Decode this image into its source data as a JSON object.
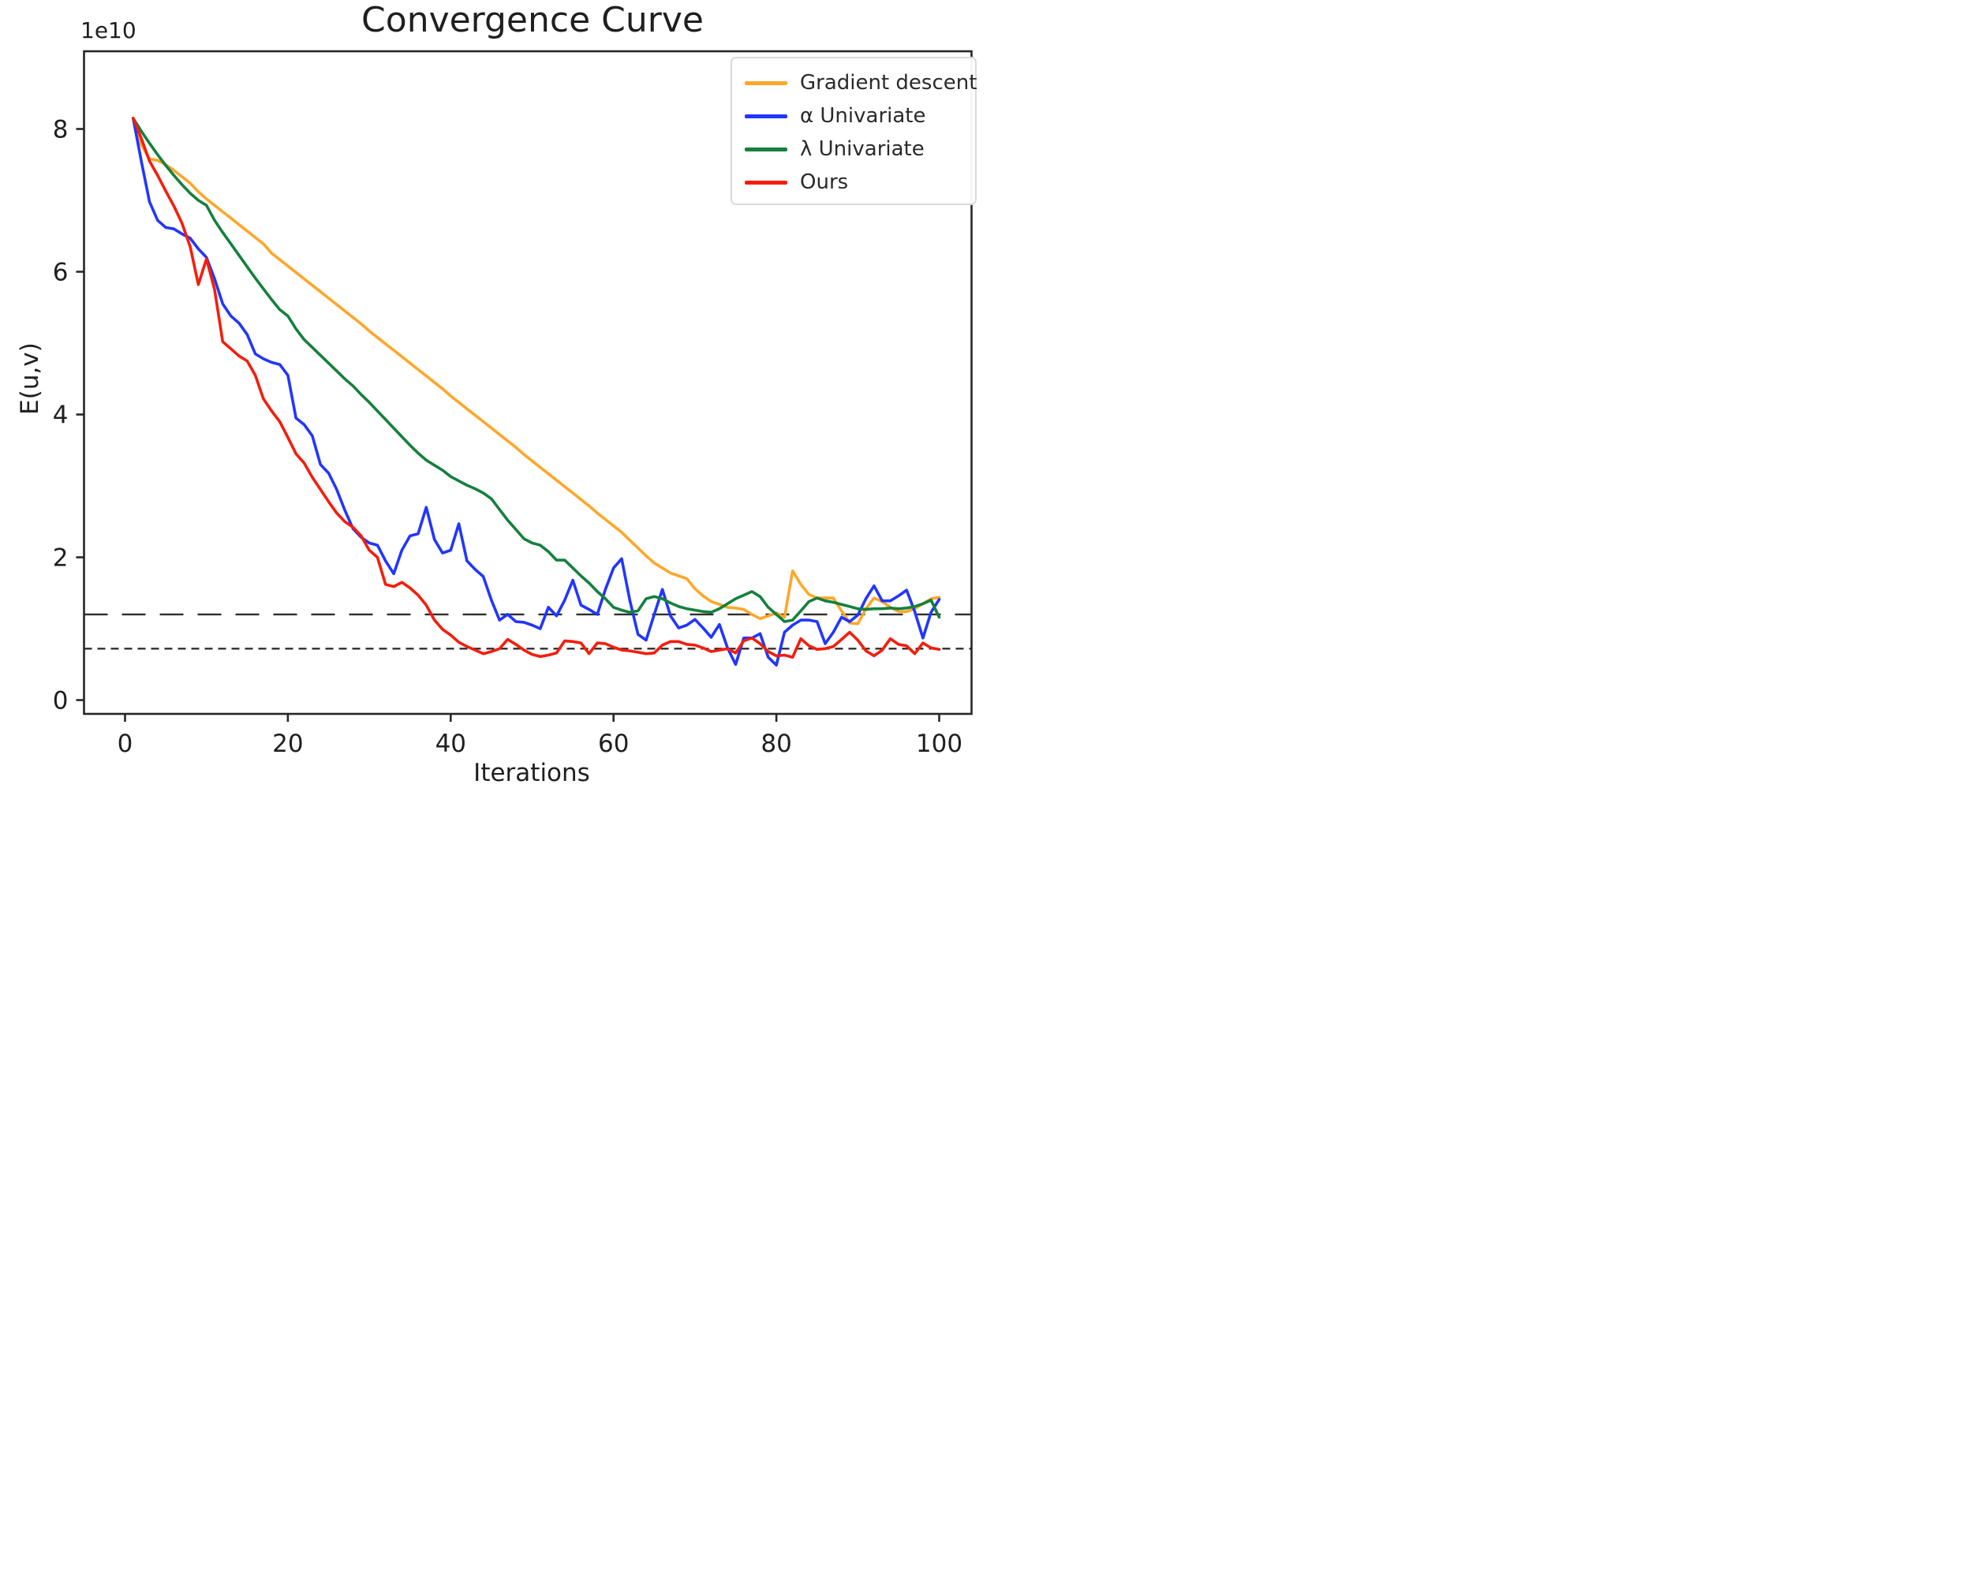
{
  "title": "Convergence Curve",
  "axes": {
    "x_label": "Iterations",
    "y_label": "E(u,v)",
    "y_offset_label": "1e10",
    "x_ticks": [
      0,
      20,
      40,
      60,
      80,
      100
    ],
    "y_ticks": [
      0,
      2,
      4,
      6,
      8
    ]
  },
  "colors": {
    "gradient_descent": "#ffa629",
    "alpha_univariate": "#2136ff",
    "lambda_univariate": "#15803c",
    "ours": "#f51d0c",
    "reference_line": "#2e2e2e",
    "spine": "#262626",
    "text": "#1f1f1f"
  },
  "legend": {
    "items": [
      {
        "label": "Gradient descent",
        "color_key": "gradient_descent"
      },
      {
        "label": "α Univariate",
        "color_key": "alpha_univariate"
      },
      {
        "label": "λ Univariate",
        "color_key": "lambda_univariate"
      },
      {
        "label": "Ours",
        "color_key": "ours"
      }
    ]
  },
  "chart_data": {
    "type": "line",
    "title": "Convergence Curve",
    "xlabel": "Iterations",
    "ylabel": "E(u,v)",
    "y_unit_scale": "1e10",
    "xlim": [
      -5,
      104
    ],
    "ylim_1e10": [
      -0.2,
      9.1
    ],
    "x": {
      "start": 1,
      "step": 1,
      "count": 100
    },
    "grid": false,
    "legend_position": "upper right",
    "reference_lines": [
      {
        "value_1e10": 1.2,
        "style": "long-dash"
      },
      {
        "value_1e10": 0.72,
        "style": "short-dash"
      }
    ],
    "series": [
      {
        "name": "Gradient descent",
        "color_key": "gradient_descent",
        "values_1e10": [
          8.15,
          7.78,
          7.58,
          7.56,
          7.5,
          7.42,
          7.33,
          7.24,
          7.12,
          7.02,
          6.93,
          6.84,
          6.75,
          6.66,
          6.57,
          6.48,
          6.39,
          6.26,
          6.17,
          6.08,
          5.99,
          5.9,
          5.81,
          5.72,
          5.63,
          5.54,
          5.45,
          5.36,
          5.27,
          5.17,
          5.08,
          4.99,
          4.9,
          4.81,
          4.72,
          4.63,
          4.54,
          4.45,
          4.36,
          4.26,
          4.17,
          4.08,
          3.99,
          3.9,
          3.81,
          3.72,
          3.63,
          3.54,
          3.44,
          3.35,
          3.26,
          3.17,
          3.08,
          2.99,
          2.9,
          2.81,
          2.72,
          2.62,
          2.53,
          2.44,
          2.35,
          2.24,
          2.13,
          2.02,
          1.92,
          1.85,
          1.78,
          1.74,
          1.7,
          1.56,
          1.46,
          1.38,
          1.34,
          1.3,
          1.29,
          1.27,
          1.2,
          1.14,
          1.18,
          1.22,
          1.16,
          1.81,
          1.62,
          1.48,
          1.43,
          1.43,
          1.43,
          1.25,
          1.08,
          1.07,
          1.28,
          1.43,
          1.38,
          1.3,
          1.24,
          1.24,
          1.28,
          1.35,
          1.42,
          1.44
        ]
      },
      {
        "name": "α Univariate",
        "color_key": "alpha_univariate",
        "values_1e10": [
          8.15,
          7.55,
          6.98,
          6.72,
          6.62,
          6.6,
          6.53,
          6.47,
          6.32,
          6.2,
          5.9,
          5.55,
          5.38,
          5.28,
          5.12,
          4.85,
          4.78,
          4.73,
          4.7,
          4.55,
          3.95,
          3.86,
          3.7,
          3.3,
          3.18,
          2.95,
          2.66,
          2.4,
          2.28,
          2.2,
          2.17,
          1.95,
          1.77,
          2.1,
          2.3,
          2.33,
          2.7,
          2.25,
          2.06,
          2.1,
          2.47,
          1.95,
          1.83,
          1.73,
          1.4,
          1.12,
          1.2,
          1.1,
          1.09,
          1.05,
          1.0,
          1.3,
          1.18,
          1.4,
          1.68,
          1.33,
          1.27,
          1.2,
          1.55,
          1.85,
          1.98,
          1.4,
          0.92,
          0.84,
          1.2,
          1.55,
          1.18,
          1.01,
          1.05,
          1.13,
          1.01,
          0.88,
          1.06,
          0.73,
          0.5,
          0.87,
          0.87,
          0.93,
          0.6,
          0.49,
          0.95,
          1.05,
          1.12,
          1.12,
          1.1,
          0.79,
          0.95,
          1.16,
          1.1,
          1.19,
          1.42,
          1.6,
          1.39,
          1.39,
          1.46,
          1.54,
          1.24,
          0.87,
          1.23,
          1.41
        ]
      },
      {
        "name": "λ Univariate",
        "color_key": "lambda_univariate",
        "values_1e10": [
          8.15,
          7.97,
          7.8,
          7.64,
          7.49,
          7.35,
          7.22,
          7.1,
          7.0,
          6.93,
          6.72,
          6.55,
          6.39,
          6.23,
          6.07,
          5.91,
          5.76,
          5.61,
          5.47,
          5.38,
          5.2,
          5.05,
          4.94,
          4.83,
          4.72,
          4.61,
          4.5,
          4.4,
          4.28,
          4.17,
          4.05,
          3.93,
          3.81,
          3.69,
          3.57,
          3.46,
          3.36,
          3.29,
          3.22,
          3.13,
          3.07,
          3.01,
          2.96,
          2.9,
          2.82,
          2.67,
          2.52,
          2.39,
          2.26,
          2.2,
          2.17,
          2.08,
          1.96,
          1.96,
          1.85,
          1.74,
          1.64,
          1.52,
          1.42,
          1.3,
          1.26,
          1.23,
          1.25,
          1.42,
          1.45,
          1.42,
          1.36,
          1.31,
          1.28,
          1.26,
          1.24,
          1.23,
          1.28,
          1.35,
          1.42,
          1.47,
          1.52,
          1.45,
          1.3,
          1.2,
          1.1,
          1.12,
          1.25,
          1.38,
          1.43,
          1.39,
          1.37,
          1.34,
          1.31,
          1.28,
          1.27,
          1.28,
          1.28,
          1.29,
          1.28,
          1.29,
          1.31,
          1.35,
          1.4,
          1.16
        ]
      },
      {
        "name": "Ours",
        "color_key": "ours",
        "values_1e10": [
          8.15,
          7.87,
          7.55,
          7.35,
          7.13,
          6.92,
          6.68,
          6.35,
          5.82,
          6.18,
          5.75,
          5.02,
          4.92,
          4.82,
          4.75,
          4.55,
          4.22,
          4.05,
          3.9,
          3.68,
          3.45,
          3.32,
          3.12,
          2.95,
          2.78,
          2.62,
          2.5,
          2.42,
          2.3,
          2.1,
          2.0,
          1.62,
          1.59,
          1.65,
          1.57,
          1.47,
          1.33,
          1.12,
          0.99,
          0.91,
          0.81,
          0.75,
          0.7,
          0.65,
          0.68,
          0.72,
          0.85,
          0.78,
          0.7,
          0.64,
          0.61,
          0.63,
          0.66,
          0.83,
          0.82,
          0.8,
          0.65,
          0.8,
          0.79,
          0.74,
          0.7,
          0.69,
          0.67,
          0.65,
          0.66,
          0.77,
          0.82,
          0.82,
          0.78,
          0.77,
          0.73,
          0.68,
          0.7,
          0.72,
          0.66,
          0.83,
          0.87,
          0.79,
          0.68,
          0.62,
          0.63,
          0.6,
          0.86,
          0.76,
          0.71,
          0.72,
          0.75,
          0.85,
          0.95,
          0.84,
          0.69,
          0.62,
          0.7,
          0.86,
          0.78,
          0.76,
          0.65,
          0.8,
          0.73,
          0.71
        ]
      }
    ]
  }
}
